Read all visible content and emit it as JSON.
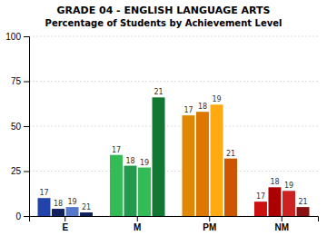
{
  "chart_data": {
    "type": "bar",
    "title": "GRADE 04 - ENGLISH LANGUAGE ARTS",
    "subtitle": "Percentage of Students by Achievement Level",
    "categories": [
      "E",
      "M",
      "PM",
      "NM"
    ],
    "series": [
      {
        "name": "17",
        "values": [
          10,
          34,
          56,
          8
        ],
        "colors": [
          "#2244aa",
          "#33bb55",
          "#e08800",
          "#cc1111"
        ]
      },
      {
        "name": "18",
        "values": [
          4,
          28,
          58,
          16
        ],
        "colors": [
          "#102060",
          "#22994d",
          "#dd7700",
          "#aa0000"
        ]
      },
      {
        "name": "19",
        "values": [
          5,
          27,
          62,
          14
        ],
        "colors": [
          "#5577cc",
          "#33bb55",
          "#ffaa11",
          "#cc2222"
        ]
      },
      {
        "name": "21",
        "values": [
          2,
          66,
          32,
          5
        ],
        "colors": [
          "#102060",
          "#117733",
          "#cc5500",
          "#881111"
        ]
      }
    ],
    "ylim": [
      0,
      100
    ],
    "yticks": [
      0,
      25,
      50,
      75,
      100
    ],
    "grid": true
  }
}
